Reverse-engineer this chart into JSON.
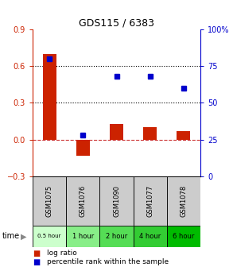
{
  "title": "GDS115 / 6383",
  "samples": [
    "GSM1075",
    "GSM1076",
    "GSM1090",
    "GSM1077",
    "GSM1078"
  ],
  "time_labels": [
    "0.5 hour",
    "1 hour",
    "2 hour",
    "4 hour",
    "6 hour"
  ],
  "time_colors": [
    "#ccffcc",
    "#88ee88",
    "#55dd55",
    "#33cc33",
    "#00bb00"
  ],
  "log_ratios": [
    0.7,
    -0.13,
    0.13,
    0.1,
    0.07
  ],
  "percentile_ranks": [
    80,
    28,
    68,
    68,
    60
  ],
  "bar_color": "#cc2200",
  "dot_color": "#0000cc",
  "ylim_left": [
    -0.3,
    0.9
  ],
  "ylim_right": [
    0,
    100
  ],
  "yticks_left": [
    -0.3,
    0.0,
    0.3,
    0.6,
    0.9
  ],
  "yticks_right": [
    0,
    25,
    50,
    75,
    100
  ],
  "hline_y_dashed": 0.0,
  "hline_y_dotted": [
    0.3,
    0.6
  ],
  "background_color": "#ffffff",
  "sample_box_color": "#cccccc",
  "legend_text1": "log ratio",
  "legend_text2": "percentile rank within the sample",
  "time_label": "time",
  "bar_width": 0.4
}
